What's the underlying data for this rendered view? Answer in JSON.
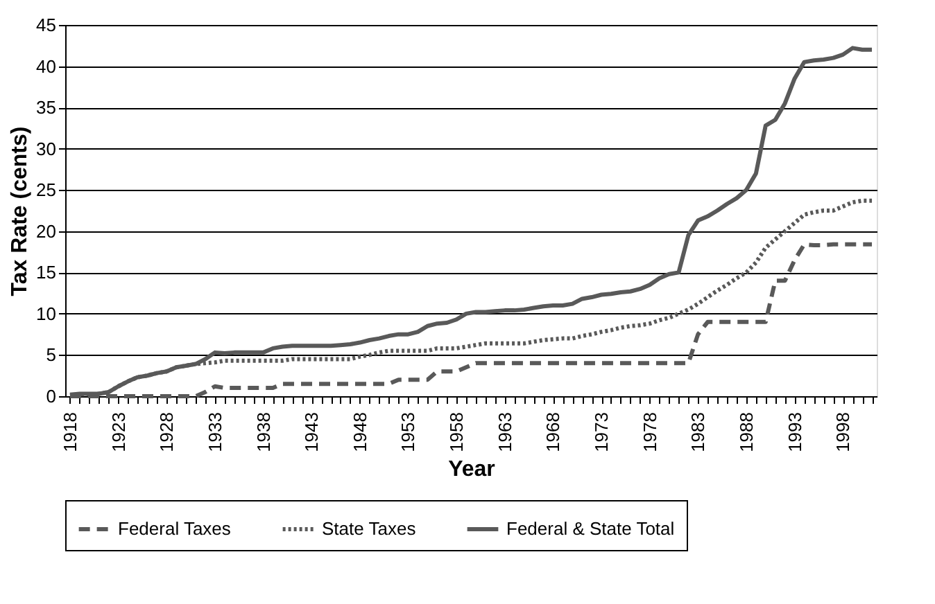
{
  "chart_data": {
    "type": "line",
    "xlabel": "Year",
    "ylabel": "Tax Rate (cents)",
    "categories": [
      "1918",
      null,
      null,
      null,
      null,
      "1923",
      null,
      null,
      null,
      null,
      "1928",
      null,
      null,
      null,
      null,
      "1933",
      null,
      null,
      null,
      null,
      "1938",
      null,
      null,
      null,
      null,
      "1943",
      null,
      null,
      null,
      null,
      "1948",
      null,
      null,
      null,
      null,
      "1953",
      null,
      null,
      null,
      null,
      "1958",
      null,
      null,
      null,
      null,
      "1963",
      null,
      null,
      null,
      null,
      "1968",
      null,
      null,
      null,
      null,
      "1973",
      null,
      null,
      null,
      null,
      "1978",
      null,
      null,
      null,
      null,
      "1983",
      null,
      null,
      null,
      null,
      "1988",
      null,
      null,
      null,
      null,
      "1993",
      null,
      null,
      null,
      null,
      "1998",
      null,
      null,
      null
    ],
    "series": [
      {
        "name": "Federal Taxes",
        "color": "#595959",
        "line_style": "dashed",
        "values": [
          0,
          0,
          0,
          0,
          0,
          0,
          0,
          0,
          0,
          0,
          0,
          0,
          0,
          0,
          0.5,
          1.2,
          1,
          1,
          1,
          1,
          1,
          1,
          1.5,
          1.5,
          1.5,
          1.5,
          1.5,
          1.5,
          1.5,
          1.5,
          1.5,
          1.5,
          1.5,
          1.5,
          2,
          2,
          2,
          2,
          3,
          3,
          3,
          3.5,
          4,
          4,
          4,
          4,
          4,
          4,
          4,
          4,
          4,
          4,
          4,
          4,
          4,
          4,
          4,
          4,
          4,
          4,
          4,
          4,
          4,
          4,
          4,
          7.5,
          9,
          9,
          9,
          9,
          9,
          9,
          9,
          14,
          14,
          16.5,
          18.4,
          18.3,
          18.3,
          18.4,
          18.4,
          18.4,
          18.4,
          18.4
        ]
      },
      {
        "name": "State Taxes",
        "color": "#595959",
        "line_style": "dotted",
        "values": [
          0.1,
          0.2,
          0.2,
          0.3,
          0.5,
          1.2,
          1.8,
          2.3,
          2.5,
          2.8,
          3,
          3.5,
          3.7,
          3.9,
          4,
          4.1,
          4.3,
          4.3,
          4.3,
          4.3,
          4.3,
          4.3,
          4.3,
          4.5,
          4.5,
          4.5,
          4.5,
          4.5,
          4.5,
          4.5,
          4.8,
          5,
          5.3,
          5.5,
          5.5,
          5.5,
          5.5,
          5.5,
          5.8,
          5.8,
          5.8,
          6,
          6.2,
          6.4,
          6.4,
          6.4,
          6.4,
          6.4,
          6.6,
          6.8,
          6.9,
          7,
          7,
          7.3,
          7.5,
          7.8,
          8,
          8.3,
          8.5,
          8.6,
          8.8,
          9.2,
          9.5,
          10,
          10.5,
          11.2,
          12,
          12.8,
          13.5,
          14.3,
          15,
          16.2,
          18,
          19,
          20,
          21,
          22,
          22.3,
          22.5,
          22.5,
          23,
          23.5,
          23.7,
          23.7
        ]
      },
      {
        "name": "Federal & State Total",
        "color": "#595959",
        "line_style": "solid",
        "values": [
          0.2,
          0.3,
          0.3,
          0.3,
          0.5,
          1.2,
          1.8,
          2.3,
          2.5,
          2.8,
          3,
          3.5,
          3.7,
          3.9,
          4.5,
          5.3,
          5.2,
          5.3,
          5.3,
          5.3,
          5.3,
          5.8,
          6,
          6.1,
          6.1,
          6.1,
          6.1,
          6.1,
          6.2,
          6.3,
          6.5,
          6.8,
          7,
          7.3,
          7.5,
          7.5,
          7.8,
          8.5,
          8.8,
          8.9,
          9.3,
          10,
          10.2,
          10.2,
          10.3,
          10.4,
          10.4,
          10.5,
          10.7,
          10.9,
          11,
          11,
          11.2,
          11.8,
          12,
          12.3,
          12.4,
          12.6,
          12.7,
          13,
          13.5,
          14.3,
          14.8,
          15,
          19.5,
          21.3,
          21.8,
          22.5,
          23.3,
          24,
          25,
          27,
          32.8,
          33.5,
          35.5,
          38.5,
          40.5,
          40.7,
          40.8,
          41,
          41.4,
          42.2,
          42,
          42
        ]
      }
    ],
    "ylim": [
      0,
      45
    ],
    "yticks": [
      0,
      5,
      10,
      15,
      20,
      25,
      30,
      35,
      40,
      45
    ],
    "grid": "y",
    "legend": "bottom"
  }
}
